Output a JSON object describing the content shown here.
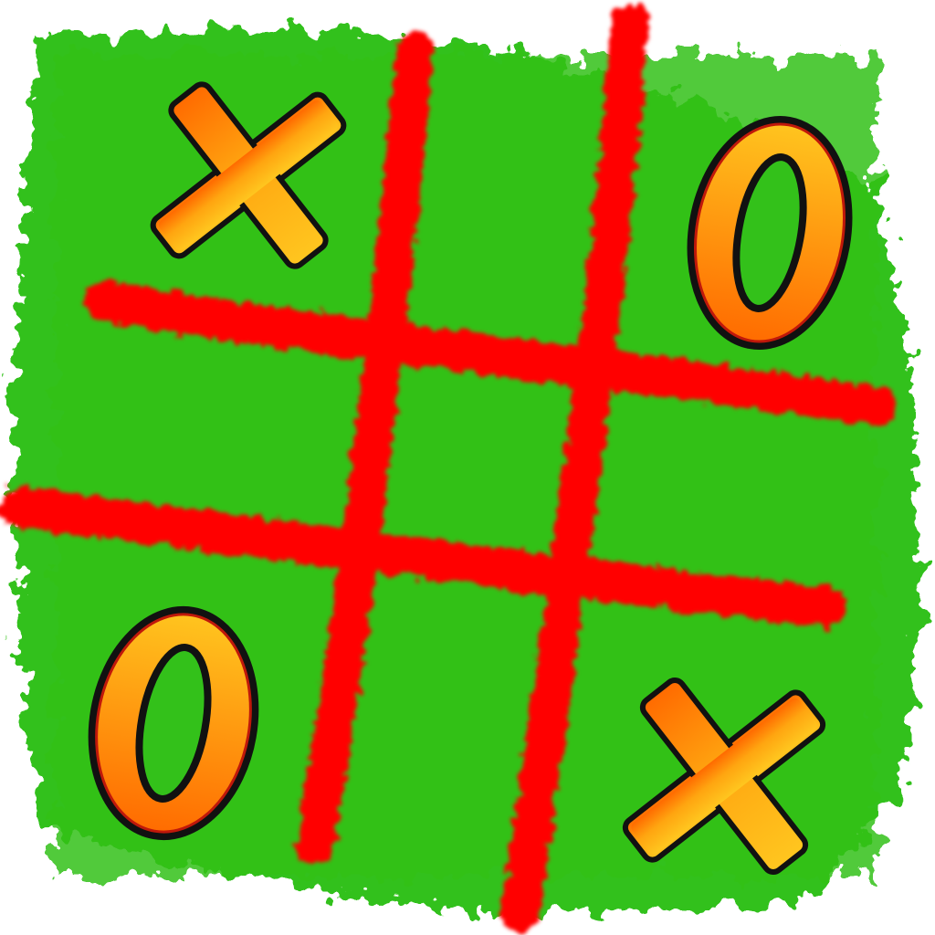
{
  "colors": {
    "background": "#ffffff",
    "board_green": "#33c11a",
    "grid_red": "#ff0000",
    "mark_fill_top": "#ffc61f",
    "mark_fill_bottom": "#ff6a00",
    "mark_outline": "#111111",
    "mark_inner_stroke": "#c0180a"
  },
  "marks": {
    "top_left": "x",
    "top_right": "0",
    "bottom_left": "0",
    "bottom_right": "x"
  }
}
